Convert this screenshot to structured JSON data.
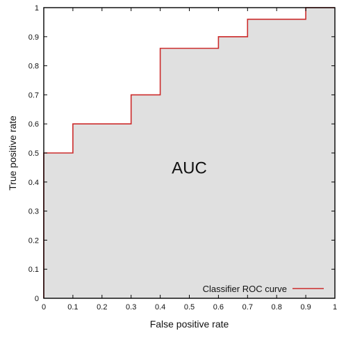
{
  "chart_data": {
    "type": "line",
    "title": "",
    "xlabel": "False positive rate",
    "ylabel": "True positive rate",
    "xlim": [
      0,
      1
    ],
    "ylim": [
      0,
      1
    ],
    "grid": false,
    "legend_position": "bottom-right",
    "x_ticks": [
      "0",
      "0.1",
      "0.2",
      "0.3",
      "0.4",
      "0.5",
      "0.6",
      "0.7",
      "0.8",
      "0.9",
      "1"
    ],
    "y_ticks": [
      "0",
      "0.1",
      "0.2",
      "0.3",
      "0.4",
      "0.5",
      "0.6",
      "0.7",
      "0.8",
      "0.9",
      "1"
    ],
    "annotation": "AUC",
    "area_fill_color": "#e0e0e0",
    "series": [
      {
        "name": "Classifier ROC curve",
        "color": "#cc2a2a",
        "x": [
          0,
          0,
          0.1,
          0.1,
          0.3,
          0.3,
          0.4,
          0.4,
          0.6,
          0.6,
          0.7,
          0.7,
          0.9,
          0.9,
          1
        ],
        "y": [
          0,
          0.5,
          0.5,
          0.6,
          0.6,
          0.7,
          0.7,
          0.86,
          0.86,
          0.9,
          0.9,
          0.96,
          0.96,
          1,
          1
        ]
      }
    ]
  }
}
